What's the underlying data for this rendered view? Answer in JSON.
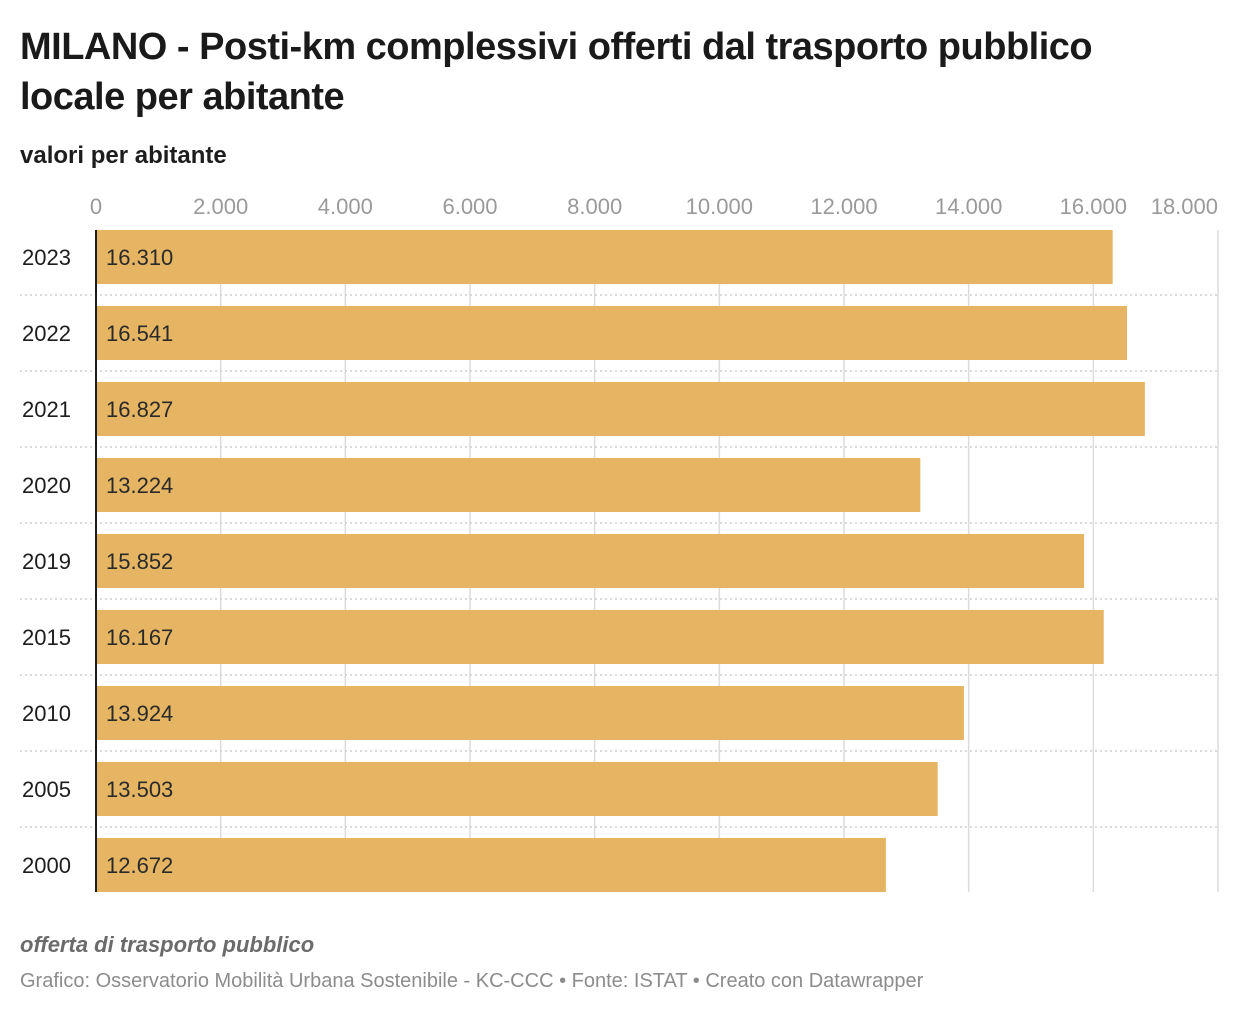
{
  "header": {
    "title": "MILANO - Posti-km complessivi offerti dal trasporto pubblico locale per abitante",
    "subtitle": "valori per abitante"
  },
  "chart_data": {
    "type": "bar",
    "orientation": "horizontal",
    "categories": [
      "2023",
      "2022",
      "2021",
      "2020",
      "2019",
      "2015",
      "2010",
      "2005",
      "2000"
    ],
    "values": [
      16310,
      16541,
      16827,
      13224,
      15852,
      16167,
      13924,
      13503,
      12672
    ],
    "value_labels": [
      "16.310",
      "16.541",
      "16.827",
      "13.224",
      "15.852",
      "16.167",
      "13.924",
      "13.503",
      "12.672"
    ],
    "xlim": [
      0,
      18000
    ],
    "ticks": [
      0,
      2000,
      4000,
      6000,
      8000,
      10000,
      12000,
      14000,
      16000,
      18000
    ],
    "tick_labels": [
      "0",
      "2.000",
      "4.000",
      "6.000",
      "8.000",
      "10.000",
      "12.000",
      "14.000",
      "16.000",
      "18.000"
    ],
    "axis_position": "top",
    "grid": true,
    "bar_color": "#e6b563",
    "grid_color": "#dcdcdc",
    "axis_color": "#1d1d1d"
  },
  "notes": {
    "caption": "offerta di trasporto pubblico",
    "source": "Grafico: Osservatorio Mobilità Urbana Sostenibile - KC-CCC • Fonte: ISTAT • Creato con Datawrapper"
  }
}
